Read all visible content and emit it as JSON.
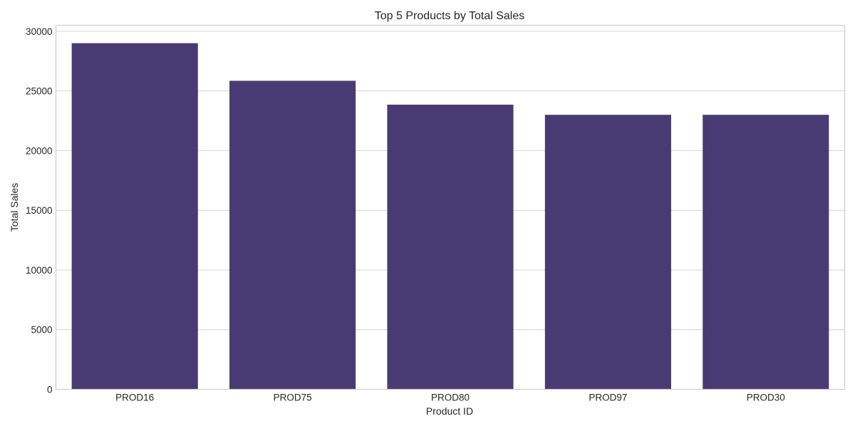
{
  "chart_data": {
    "type": "bar",
    "title": "Top 5 Products by Total Sales",
    "xlabel": "Product ID",
    "ylabel": "Total Sales",
    "categories": [
      "PROD16",
      "PROD75",
      "PROD80",
      "PROD97",
      "PROD30"
    ],
    "values": [
      29000,
      25850,
      23850,
      23000,
      23000
    ],
    "ylim": [
      0,
      30500
    ],
    "yticks": [
      0,
      5000,
      10000,
      15000,
      20000,
      25000,
      30000
    ],
    "grid": true,
    "bar_color": "#483a73"
  }
}
